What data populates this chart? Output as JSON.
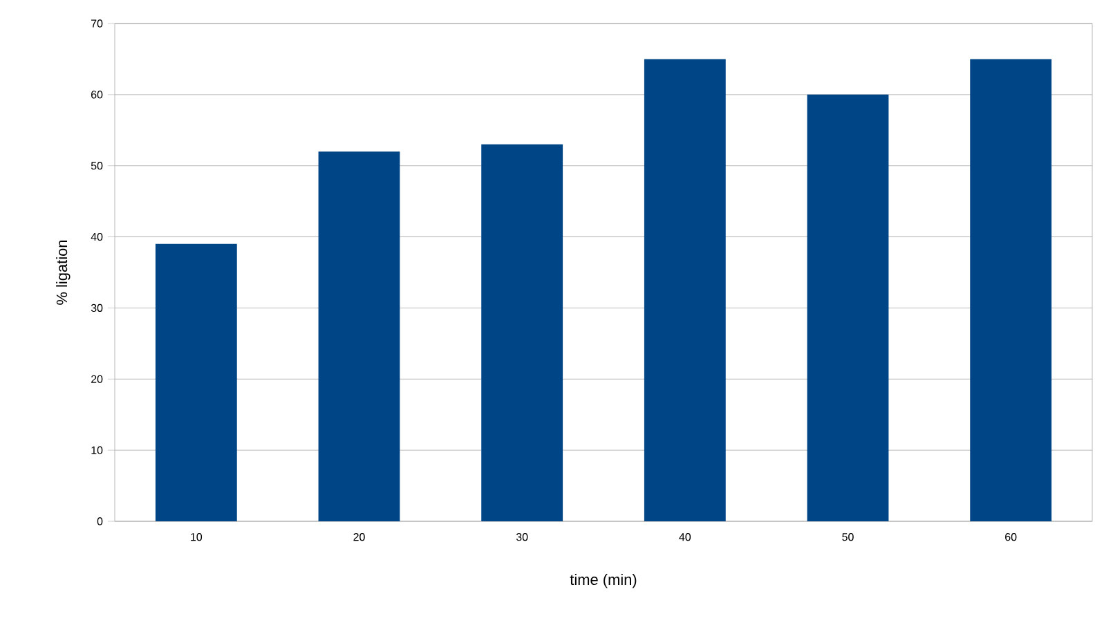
{
  "chart_data": {
    "type": "bar",
    "xlabel": "time (min)",
    "ylabel": "% ligation",
    "categories": [
      "10",
      "20",
      "30",
      "40",
      "50",
      "60"
    ],
    "values": [
      39,
      52,
      53,
      65,
      60,
      65
    ],
    "color": "#004586",
    "ylim": [
      0,
      70
    ],
    "yticks": [
      0,
      10,
      20,
      30,
      40,
      50,
      60,
      70
    ],
    "grid": "y"
  }
}
